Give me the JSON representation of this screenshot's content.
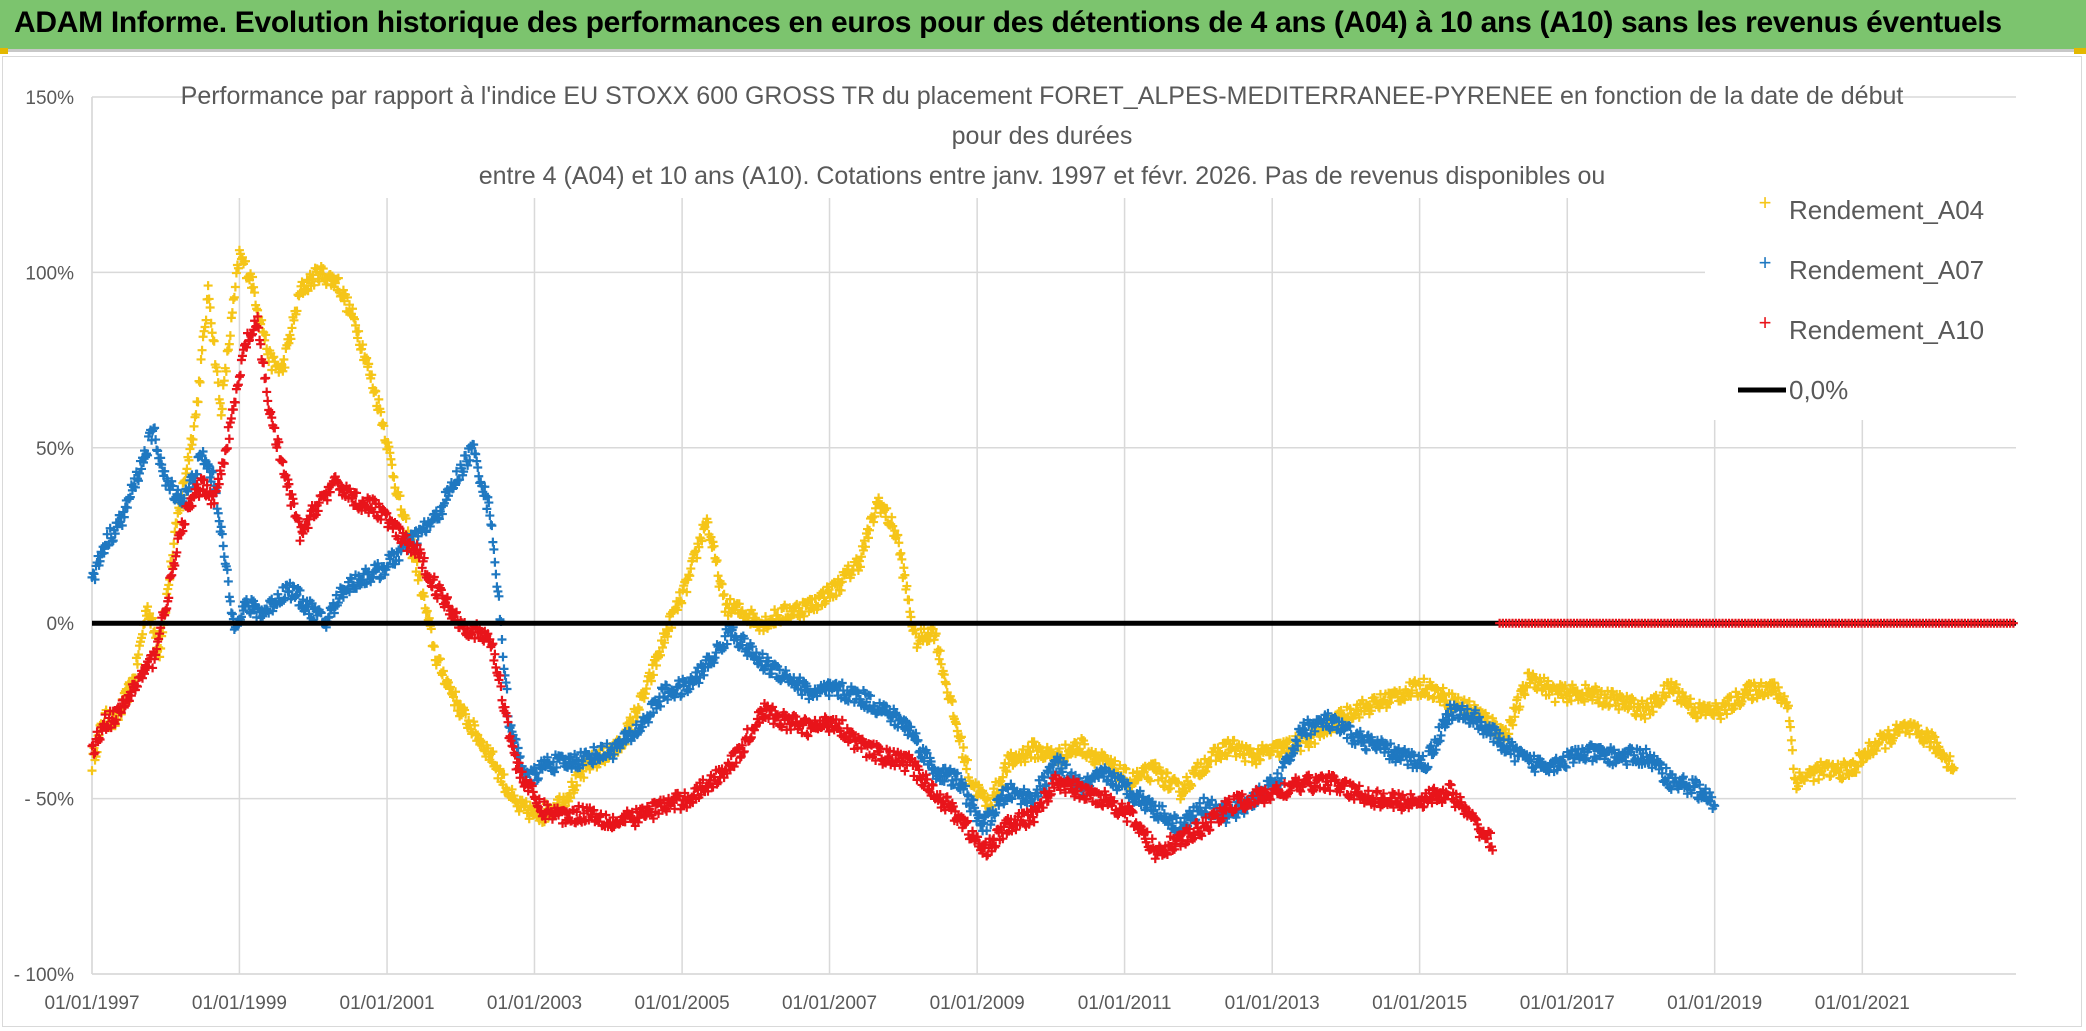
{
  "banner": {
    "title": "ADAM Informe. Evolution historique des performances en euros pour des détentions de 4 ans (A04) à 10 ans (A10) sans les revenus éventuels"
  },
  "colors": {
    "banner_bg": "#7cc46e",
    "A04": "#f5c518",
    "A07": "#1f78c1",
    "A10": "#e8141a",
    "zero": "#000000",
    "grid": "#d9d9d9"
  },
  "chart_data": {
    "type": "scatter",
    "title_lines": [
      "Performance par rapport à l'indice EU STOXX 600 GROSS TR  du placement FORET_ALPES-MEDITERRANEE-PYRENEE en fonction de la date de début",
      "pour des durées",
      "entre 4 (A04) et 10 ans (A10). Cotations entre janv. 1997 et févr. 2026. Pas de revenus disponibles ou"
    ],
    "x_tick_labels": [
      "01/01/1997",
      "01/01/1999",
      "01/01/2001",
      "01/01/2003",
      "01/01/2005",
      "01/01/2007",
      "01/01/2009",
      "01/01/2011",
      "01/01/2013",
      "01/01/2015",
      "01/01/2017",
      "01/01/2019",
      "01/01/2021"
    ],
    "y_tick_labels": [
      "150%",
      "100%",
      "50%",
      "0%",
      "- 50%",
      "- 100%"
    ],
    "xlim": [
      "1997-01-01",
      "2023-02-01"
    ],
    "ylim": [
      -100,
      150
    ],
    "grid": true,
    "legend_position": "top-right",
    "legend": [
      "Rendement_A04",
      "Rendement_A07",
      "Rendement_A10",
      "0,0%"
    ],
    "zero_line": {
      "name": "0,0%",
      "y": 0,
      "x_start": "1997-01-01",
      "x_end": "2023-02-01"
    },
    "series": [
      {
        "name": "Rendement_A04",
        "marker": "+",
        "start": "1997-01-01",
        "end": "2022-04-01",
        "anchors": [
          [
            "1997-01",
            -40
          ],
          [
            "1997-03",
            -27
          ],
          [
            "1997-05",
            -28
          ],
          [
            "1997-08",
            -15
          ],
          [
            "1997-10",
            5
          ],
          [
            "1997-12",
            -8
          ],
          [
            "1998-03",
            30
          ],
          [
            "1998-06",
            60
          ],
          [
            "1998-08",
            95
          ],
          [
            "1998-10",
            60
          ],
          [
            "1999-01",
            105
          ],
          [
            "1999-03",
            98
          ],
          [
            "1999-06",
            75
          ],
          [
            "1999-08",
            72
          ],
          [
            "1999-11",
            95
          ],
          [
            "2000-02",
            100
          ],
          [
            "2000-05",
            97
          ],
          [
            "2000-08",
            85
          ],
          [
            "2000-12",
            60
          ],
          [
            "2001-03",
            35
          ],
          [
            "2001-06",
            15
          ],
          [
            "2001-09",
            -10
          ],
          [
            "2002-01",
            -25
          ],
          [
            "2002-06",
            -38
          ],
          [
            "2002-10",
            -52
          ],
          [
            "2003-02",
            -55
          ],
          [
            "2003-06",
            -50
          ],
          [
            "2003-10",
            -40
          ],
          [
            "2004-03",
            -35
          ],
          [
            "2004-07",
            -20
          ],
          [
            "2004-11",
            0
          ],
          [
            "2005-02",
            12
          ],
          [
            "2005-05",
            30
          ],
          [
            "2005-08",
            5
          ],
          [
            "2005-11",
            3
          ],
          [
            "2006-02",
            0
          ],
          [
            "2006-06",
            3
          ],
          [
            "2006-10",
            5
          ],
          [
            "2007-02",
            10
          ],
          [
            "2007-06",
            18
          ],
          [
            "2007-09",
            35
          ],
          [
            "2007-12",
            25
          ],
          [
            "2008-03",
            -5
          ],
          [
            "2008-06",
            -2
          ],
          [
            "2008-09",
            -25
          ],
          [
            "2008-12",
            -45
          ],
          [
            "2009-03",
            -52
          ],
          [
            "2009-06",
            -40
          ],
          [
            "2009-10",
            -36
          ],
          [
            "2010-02",
            -38
          ],
          [
            "2010-06",
            -35
          ],
          [
            "2010-10",
            -40
          ],
          [
            "2011-02",
            -45
          ],
          [
            "2011-06",
            -42
          ],
          [
            "2011-10",
            -48
          ],
          [
            "2012-02",
            -40
          ],
          [
            "2012-06",
            -35
          ],
          [
            "2012-10",
            -38
          ],
          [
            "2013-02",
            -36
          ],
          [
            "2013-06",
            -34
          ],
          [
            "2013-10",
            -30
          ],
          [
            "2014-02",
            -25
          ],
          [
            "2014-06",
            -23
          ],
          [
            "2014-10",
            -20
          ],
          [
            "2015-02",
            -18
          ],
          [
            "2015-06",
            -22
          ],
          [
            "2015-10",
            -25
          ],
          [
            "2016-03",
            -32
          ],
          [
            "2016-07",
            -15
          ],
          [
            "2016-11",
            -20
          ],
          [
            "2017-04",
            -20
          ],
          [
            "2017-09",
            -22
          ],
          [
            "2018-02",
            -25
          ],
          [
            "2018-06",
            -18
          ],
          [
            "2018-10",
            -25
          ],
          [
            "2019-02",
            -25
          ],
          [
            "2019-06",
            -20
          ],
          [
            "2019-10",
            -18
          ],
          [
            "2020-01",
            -23
          ],
          [
            "2020-02",
            -45
          ],
          [
            "2020-06",
            -42
          ],
          [
            "2020-11",
            -42
          ],
          [
            "2021-03",
            -35
          ],
          [
            "2021-08",
            -30
          ],
          [
            "2021-12",
            -33
          ],
          [
            "2022-04",
            -41
          ]
        ]
      },
      {
        "name": "Rendement_A07",
        "marker": "+",
        "start": "1997-01-01",
        "end": "2019-01-01",
        "anchors": [
          [
            "1997-01",
            12
          ],
          [
            "1997-03",
            22
          ],
          [
            "1997-06",
            30
          ],
          [
            "1997-09",
            45
          ],
          [
            "1997-11",
            55
          ],
          [
            "1998-01",
            40
          ],
          [
            "1998-04",
            35
          ],
          [
            "1998-07",
            48
          ],
          [
            "1998-09",
            40
          ],
          [
            "1998-12",
            0
          ],
          [
            "1999-02",
            5
          ],
          [
            "1999-05",
            3
          ],
          [
            "1999-09",
            10
          ],
          [
            "1999-12",
            5
          ],
          [
            "2000-03",
            0
          ],
          [
            "2000-06",
            10
          ],
          [
            "2000-09",
            13
          ],
          [
            "2000-12",
            15
          ],
          [
            "2001-03",
            20
          ],
          [
            "2001-06",
            25
          ],
          [
            "2001-09",
            30
          ],
          [
            "2001-12",
            40
          ],
          [
            "2002-03",
            50
          ],
          [
            "2002-06",
            30
          ],
          [
            "2002-09",
            -30
          ],
          [
            "2002-12",
            -45
          ],
          [
            "2003-03",
            -40
          ],
          [
            "2003-06",
            -40
          ],
          [
            "2003-10",
            -38
          ],
          [
            "2004-02",
            -36
          ],
          [
            "2004-06",
            -30
          ],
          [
            "2004-10",
            -20
          ],
          [
            "2005-02",
            -18
          ],
          [
            "2005-06",
            -10
          ],
          [
            "2005-09",
            -2
          ],
          [
            "2006-01",
            -10
          ],
          [
            "2006-06",
            -15
          ],
          [
            "2006-10",
            -20
          ],
          [
            "2007-02",
            -19
          ],
          [
            "2007-06",
            -21
          ],
          [
            "2007-10",
            -25
          ],
          [
            "2008-02",
            -30
          ],
          [
            "2008-06",
            -42
          ],
          [
            "2008-10",
            -45
          ],
          [
            "2009-02",
            -58
          ],
          [
            "2009-06",
            -48
          ],
          [
            "2009-10",
            -50
          ],
          [
            "2010-02",
            -40
          ],
          [
            "2010-06",
            -47
          ],
          [
            "2010-10",
            -43
          ],
          [
            "2011-02",
            -48
          ],
          [
            "2011-06",
            -53
          ],
          [
            "2011-10",
            -58
          ],
          [
            "2012-02",
            -52
          ],
          [
            "2012-06",
            -55
          ],
          [
            "2012-10",
            -50
          ],
          [
            "2013-02",
            -45
          ],
          [
            "2013-06",
            -30
          ],
          [
            "2013-10",
            -28
          ],
          [
            "2014-02",
            -32
          ],
          [
            "2014-06",
            -35
          ],
          [
            "2014-10",
            -38
          ],
          [
            "2015-02",
            -40
          ],
          [
            "2015-06",
            -25
          ],
          [
            "2015-10",
            -27
          ],
          [
            "2016-03",
            -35
          ],
          [
            "2016-07",
            -40
          ],
          [
            "2016-11",
            -40
          ],
          [
            "2017-04",
            -37
          ],
          [
            "2017-09",
            -38
          ],
          [
            "2018-02",
            -38
          ],
          [
            "2018-06",
            -45
          ],
          [
            "2018-10",
            -47
          ],
          [
            "2019-01",
            -52
          ]
        ]
      },
      {
        "name": "Rendement_A10",
        "marker": "+",
        "start": "1997-01-01",
        "end": "2016-01-01",
        "anchors": [
          [
            "1997-01",
            -37
          ],
          [
            "1997-03",
            -28
          ],
          [
            "1997-05",
            -27
          ],
          [
            "1997-08",
            -18
          ],
          [
            "1997-11",
            -10
          ],
          [
            "1998-01",
            5
          ],
          [
            "1998-04",
            30
          ],
          [
            "1998-07",
            40
          ],
          [
            "1998-09",
            35
          ],
          [
            "1998-12",
            60
          ],
          [
            "1999-02",
            80
          ],
          [
            "1999-04",
            85
          ],
          [
            "1999-06",
            60
          ],
          [
            "1999-08",
            45
          ],
          [
            "1999-11",
            25
          ],
          [
            "2000-02",
            35
          ],
          [
            "2000-05",
            40
          ],
          [
            "2000-08",
            35
          ],
          [
            "2000-12",
            32
          ],
          [
            "2001-03",
            25
          ],
          [
            "2001-06",
            20
          ],
          [
            "2001-09",
            10
          ],
          [
            "2002-01",
            0
          ],
          [
            "2002-06",
            -5
          ],
          [
            "2002-10",
            -40
          ],
          [
            "2003-02",
            -53
          ],
          [
            "2003-06",
            -55
          ],
          [
            "2003-10",
            -54
          ],
          [
            "2004-02",
            -57
          ],
          [
            "2004-06",
            -55
          ],
          [
            "2004-10",
            -52
          ],
          [
            "2005-02",
            -50
          ],
          [
            "2005-06",
            -45
          ],
          [
            "2005-10",
            -38
          ],
          [
            "2006-02",
            -25
          ],
          [
            "2006-06",
            -28
          ],
          [
            "2006-10",
            -30
          ],
          [
            "2007-02",
            -28
          ],
          [
            "2007-06",
            -35
          ],
          [
            "2007-10",
            -38
          ],
          [
            "2008-02",
            -40
          ],
          [
            "2008-06",
            -48
          ],
          [
            "2008-10",
            -55
          ],
          [
            "2009-02",
            -65
          ],
          [
            "2009-06",
            -58
          ],
          [
            "2009-10",
            -55
          ],
          [
            "2010-02",
            -45
          ],
          [
            "2010-06",
            -48
          ],
          [
            "2010-10",
            -50
          ],
          [
            "2011-02",
            -55
          ],
          [
            "2011-06",
            -65
          ],
          [
            "2011-10",
            -62
          ],
          [
            "2012-02",
            -58
          ],
          [
            "2012-06",
            -52
          ],
          [
            "2012-10",
            -50
          ],
          [
            "2013-02",
            -48
          ],
          [
            "2013-06",
            -46
          ],
          [
            "2013-10",
            -45
          ],
          [
            "2014-02",
            -48
          ],
          [
            "2014-06",
            -50
          ],
          [
            "2014-10",
            -51
          ],
          [
            "2015-02",
            -50
          ],
          [
            "2015-06",
            -48
          ],
          [
            "2015-09",
            -55
          ],
          [
            "2016-01",
            -63
          ]
        ]
      }
    ]
  }
}
